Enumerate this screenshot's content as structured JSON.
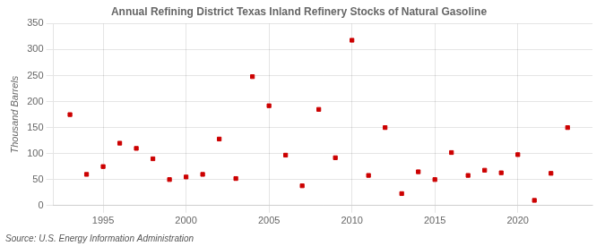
{
  "chart_data": {
    "type": "scatter",
    "title": "Annual Refining District Texas Inland Refinery Stocks of Natural Gasoline",
    "ylabel": "Thousand Barrels",
    "source": "Source: U.S. Energy Information Administration",
    "x": [
      1993,
      1994,
      1995,
      1996,
      1997,
      1998,
      1999,
      2000,
      2001,
      2002,
      2003,
      2004,
      2005,
      2006,
      2007,
      2008,
      2009,
      2010,
      2011,
      2012,
      2013,
      2014,
      2015,
      2016,
      2017,
      2018,
      2019,
      2020,
      2021,
      2022,
      2023
    ],
    "values": [
      175,
      60,
      75,
      120,
      110,
      90,
      50,
      55,
      60,
      128,
      52,
      248,
      192,
      97,
      38,
      185,
      92,
      318,
      58,
      150,
      23,
      65,
      50,
      102,
      58,
      68,
      63,
      98,
      10,
      62,
      150
    ],
    "color": "#cc0000",
    "marker": "square",
    "xlim": [
      1992.0,
      2024.5
    ],
    "xticks": [
      1995,
      2000,
      2005,
      2010,
      2015,
      2020
    ],
    "ylim": [
      0,
      350
    ],
    "yticks": [
      0,
      50,
      100,
      150,
      200,
      250,
      300,
      350
    ],
    "grid": true
  }
}
